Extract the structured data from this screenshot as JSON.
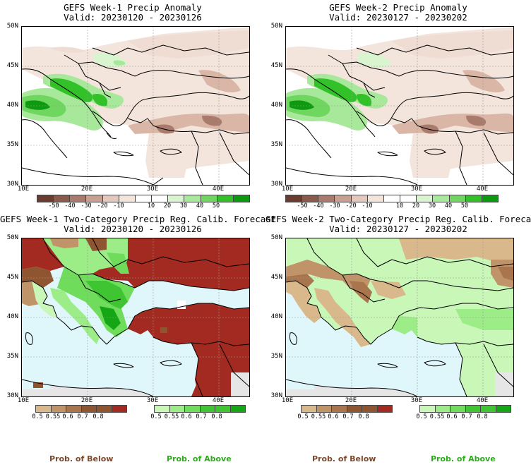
{
  "panels": [
    {
      "title": "GEFS Week-1 Precip Anomaly",
      "valid": "Valid: 20230120 - 20230126",
      "lat_labels": [
        "50N",
        "45N",
        "40N",
        "35N",
        "30N"
      ],
      "lon_labels": [
        "10E",
        "20E",
        "30E",
        "40E"
      ],
      "colorbar": {
        "labels": [
          "-50",
          "-40",
          "-30",
          "-20",
          "-10",
          "10",
          "20",
          "30",
          "40",
          "50"
        ],
        "colors": [
          "#6b3d2e",
          "#8a5a4a",
          "#a97b6c",
          "#c9a193",
          "#e3c8bd",
          "#f3e4dc",
          "#ffffff",
          "#ffffff",
          "#d8f5cf",
          "#a8e89a",
          "#6fd660",
          "#33c12a",
          "#0e9a10"
        ]
      }
    },
    {
      "title": "GEFS Week-2 Precip Anomaly",
      "valid": "Valid: 20230127 - 20230202",
      "lat_labels": [
        "50N",
        "45N",
        "40N",
        "35N",
        "30N"
      ],
      "lon_labels": [
        "10E",
        "20E",
        "30E",
        "40E"
      ],
      "colorbar": {
        "labels": [
          "-50",
          "-40",
          "-30",
          "-20",
          "-10",
          "10",
          "20",
          "30",
          "40",
          "50"
        ],
        "colors": [
          "#6b3d2e",
          "#8a5a4a",
          "#a97b6c",
          "#c9a193",
          "#e3c8bd",
          "#f3e4dc",
          "#ffffff",
          "#ffffff",
          "#d8f5cf",
          "#a8e89a",
          "#6fd660",
          "#33c12a",
          "#0e9a10"
        ]
      }
    },
    {
      "title": "GEFS Week-1 Two-Category Precip Reg. Calib. Forecast",
      "valid": "Valid: 20230120 - 20230126",
      "lat_labels": [
        "50N",
        "45N",
        "40N",
        "35N",
        "30N"
      ],
      "lon_labels": [
        "10E",
        "20E",
        "30E",
        "40E"
      ],
      "below_bar": {
        "labels": [
          "0.5",
          "0.55",
          "0.6",
          "0.7",
          "0.8"
        ],
        "colors": [
          "#d9b98c",
          "#c09468",
          "#a8754d",
          "#8f5530",
          "#a32a20"
        ]
      },
      "above_bar": {
        "labels": [
          "0.5",
          "0.55",
          "0.6",
          "0.7",
          "0.8"
        ],
        "colors": [
          "#c8f7b8",
          "#9cec88",
          "#6fdc5c",
          "#3fc532",
          "#14a614"
        ]
      }
    },
    {
      "title": "GEFS Week-2 Two-Category Precip Reg. Calib. Forecast",
      "valid": "Valid: 20230127 - 20230202",
      "lat_labels": [
        "50N",
        "45N",
        "40N",
        "35N",
        "30N"
      ],
      "lon_labels": [
        "10E",
        "20E",
        "30E",
        "40E"
      ],
      "below_bar": {
        "labels": [
          "0.5",
          "0.55",
          "0.6",
          "0.7",
          "0.8"
        ],
        "colors": [
          "#d9b98c",
          "#c09468",
          "#a8754d",
          "#8f5530",
          "#a32a20"
        ]
      },
      "above_bar": {
        "labels": [
          "0.5",
          "0.55",
          "0.6",
          "0.7",
          "0.8"
        ],
        "colors": [
          "#c8f7b8",
          "#9cec88",
          "#6fdc5c",
          "#3fc532",
          "#14a614"
        ]
      }
    }
  ],
  "legend": {
    "below_label": "Prob. of Below",
    "above_label": "Prob. of Above",
    "below_color": "#7a4a2e",
    "above_color": "#2eaa1e"
  },
  "colors": {
    "sea": "#dff7fb",
    "land_missing": "#e6e6e6"
  }
}
